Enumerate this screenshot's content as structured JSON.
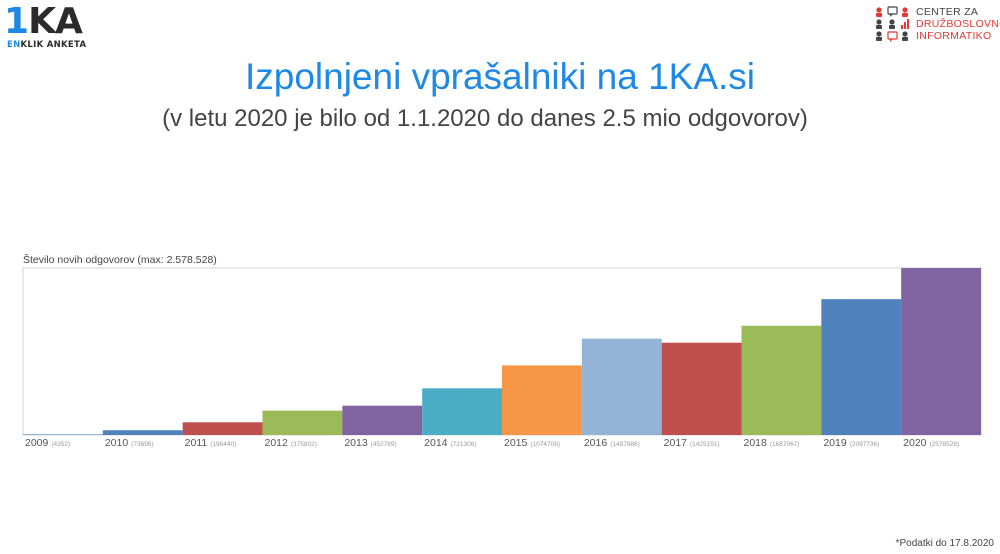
{
  "logo": {
    "mark_one": "1",
    "mark_ka": "KA",
    "sub_en": "EN",
    "sub_rest": "KLIK ANKETA"
  },
  "cdi": {
    "lines": [
      "CENTER ZA",
      "DRUŽBOSLOVNO",
      "INFORMATIKO"
    ],
    "colors": [
      "#444444",
      "#e53935",
      "#e53935"
    ]
  },
  "title": "Izpolnjeni vprašalniki na 1KA.si",
  "subtitle": "(v letu 2020 je bilo od 1.1.2020 do danes 2.5 mio odgovorov)",
  "footnote": "*Podatki do 17.8.2020",
  "chart_data": {
    "type": "bar",
    "ylabel": "Število novih odgovorov (max: 2.578.528)",
    "ylim": [
      0,
      2578528
    ],
    "grid": false,
    "categories": [
      "2009",
      "2010",
      "2011",
      "2012",
      "2013",
      "2014",
      "2015",
      "2016",
      "2017",
      "2018",
      "2019",
      "2020"
    ],
    "value_labels": [
      "(4352)",
      "(73696)",
      "(196440)",
      "(375802)",
      "(452789)",
      "(721306)",
      "(1074708)",
      "(1487886)",
      "(1425191)",
      "(1687067)",
      "(2097736)",
      "(2578528)"
    ],
    "values": [
      4352,
      73696,
      196440,
      375802,
      452789,
      721306,
      1074708,
      1487886,
      1425191,
      1687067,
      2097736,
      2578528
    ],
    "colors": [
      "#4f81bd",
      "#4f81bd",
      "#c0504d",
      "#9bbb59",
      "#8064a2",
      "#4bacc6",
      "#f79646",
      "#95b3d7",
      "#c0504d",
      "#9bbb59",
      "#4f81bd",
      "#8064a2"
    ]
  }
}
